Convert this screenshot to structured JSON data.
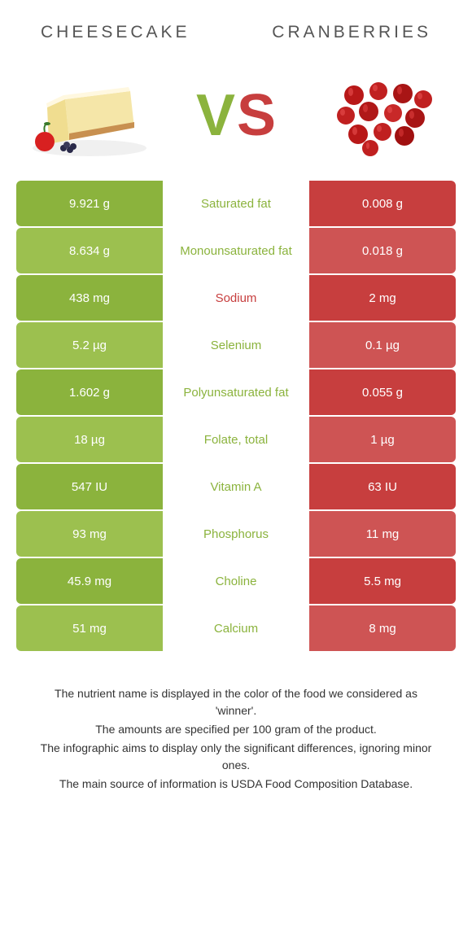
{
  "colors": {
    "cheesecake": "#8bb33d",
    "cranberry": "#c73e3e",
    "cheesecake_alt": "#9cc04f",
    "cranberry_alt": "#ce5454"
  },
  "header": {
    "left": "CHEESECAKE",
    "right": "CRANBERRIES"
  },
  "vs": {
    "v": "V",
    "s": "S"
  },
  "rows": [
    {
      "left": "9.921 g",
      "label": "Saturated fat",
      "right": "0.008 g",
      "winner": "left"
    },
    {
      "left": "8.634 g",
      "label": "Monounsaturated fat",
      "right": "0.018 g",
      "winner": "left"
    },
    {
      "left": "438 mg",
      "label": "Sodium",
      "right": "2 mg",
      "winner": "right"
    },
    {
      "left": "5.2 µg",
      "label": "Selenium",
      "right": "0.1 µg",
      "winner": "left"
    },
    {
      "left": "1.602 g",
      "label": "Polyunsaturated fat",
      "right": "0.055 g",
      "winner": "left"
    },
    {
      "left": "18 µg",
      "label": "Folate, total",
      "right": "1 µg",
      "winner": "left"
    },
    {
      "left": "547 IU",
      "label": "Vitamin A",
      "right": "63 IU",
      "winner": "left"
    },
    {
      "left": "93 mg",
      "label": "Phosphorus",
      "right": "11 mg",
      "winner": "left"
    },
    {
      "left": "45.9 mg",
      "label": "Choline",
      "right": "5.5 mg",
      "winner": "left"
    },
    {
      "left": "51 mg",
      "label": "Calcium",
      "right": "8 mg",
      "winner": "left"
    }
  ],
  "footer": {
    "l1": "The nutrient name is displayed in the color of the food we considered as 'winner'.",
    "l2": "The amounts are specified per 100 gram of the product.",
    "l3": "The infographic aims to display only the significant differences, ignoring minor ones.",
    "l4": "The main source of information is USDA Food Composition Database."
  }
}
